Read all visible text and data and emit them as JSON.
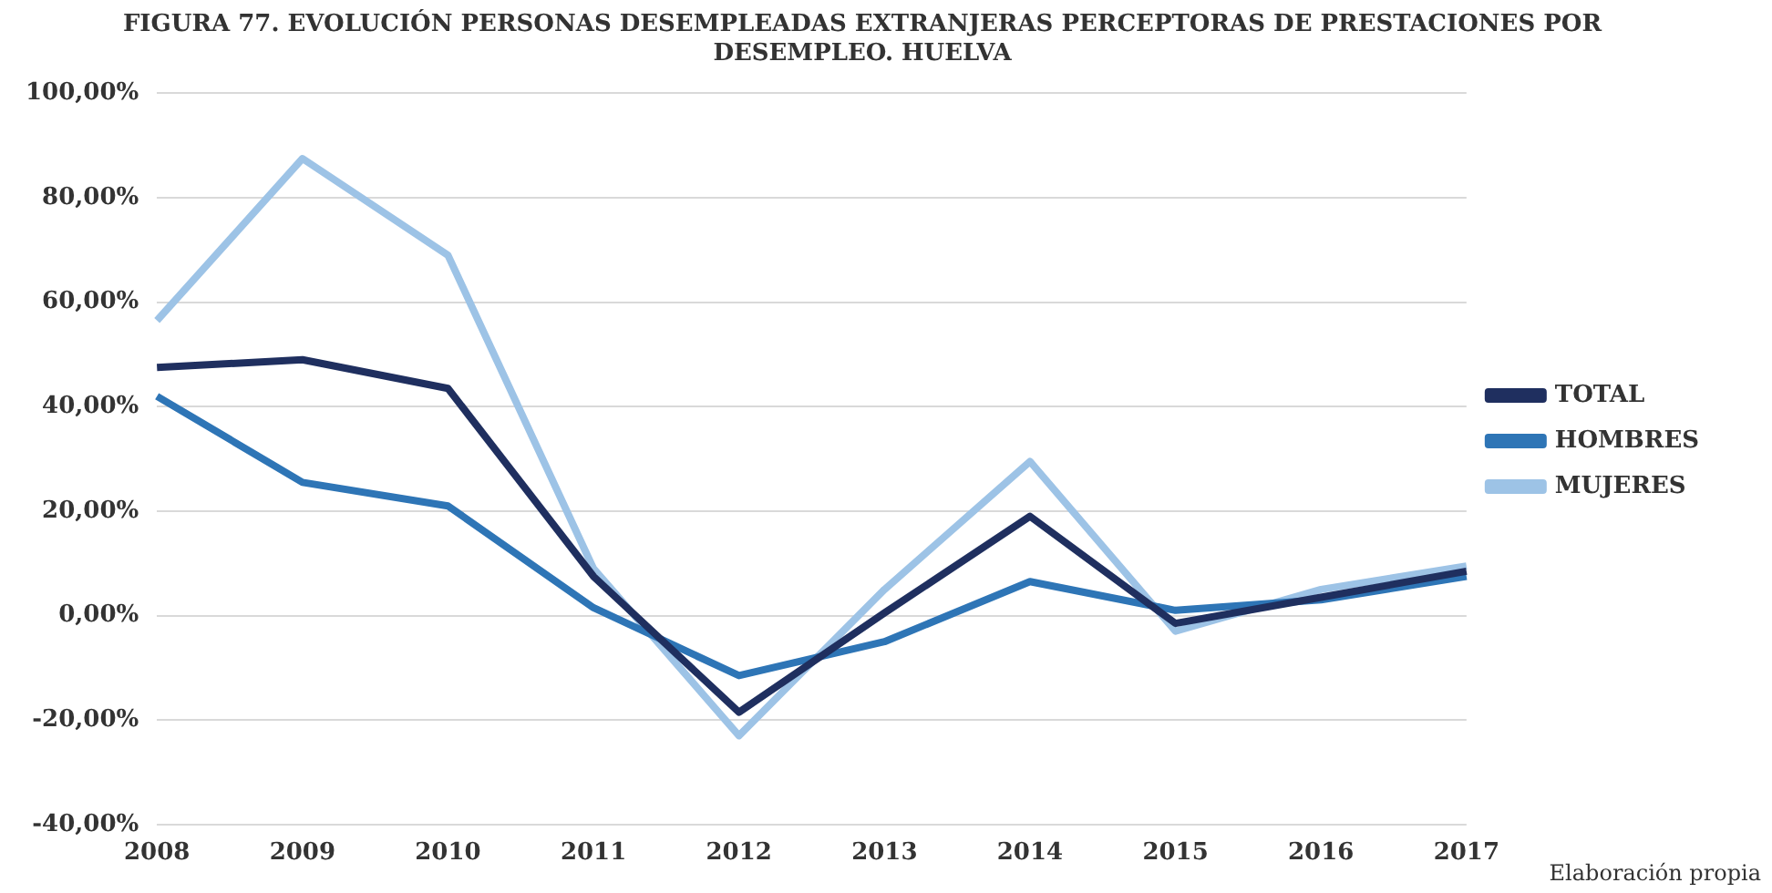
{
  "chart_data": {
    "type": "line",
    "title": "FIGURA 77. EVOLUCIÓN PERSONAS DESEMPLEADAS EXTRANJERAS PERCEPTORAS DE PRESTACIONES POR DESEMPLEO. HUELVA",
    "categories": [
      "2008",
      "2009",
      "2010",
      "2011",
      "2012",
      "2013",
      "2014",
      "2015",
      "2016",
      "2017"
    ],
    "series": [
      {
        "name": "TOTAL",
        "color": "#1f2f5f",
        "values": [
          47.5,
          49,
          43.5,
          7.5,
          -18.5,
          0.5,
          19,
          -1.5,
          3.5,
          8.5
        ]
      },
      {
        "name": "HOMBRES",
        "color": "#2e75b6",
        "values": [
          42,
          25.5,
          21,
          1.5,
          -11.5,
          -5,
          6.5,
          1,
          3,
          7.5
        ]
      },
      {
        "name": "MUJERES",
        "color": "#9dc3e6",
        "values": [
          56.5,
          87.5,
          69,
          9,
          -23,
          5,
          29.5,
          -3,
          5,
          9.5
        ]
      }
    ],
    "ylim": [
      -40,
      100
    ],
    "yticks": [
      {
        "value": -40,
        "label": "-40,00%"
      },
      {
        "value": -20,
        "label": "-20,00%"
      },
      {
        "value": 0,
        "label": "0,00%"
      },
      {
        "value": 20,
        "label": "20,00%"
      },
      {
        "value": 40,
        "label": "40,00%"
      },
      {
        "value": 60,
        "label": "60,00%"
      },
      {
        "value": 80,
        "label": "80,00%"
      },
      {
        "value": 100,
        "label": "100,00%"
      }
    ],
    "grid": "y",
    "legend": "right",
    "marker": "none",
    "line_style": "solid",
    "annotations": [
      "Elaboración propia"
    ]
  }
}
